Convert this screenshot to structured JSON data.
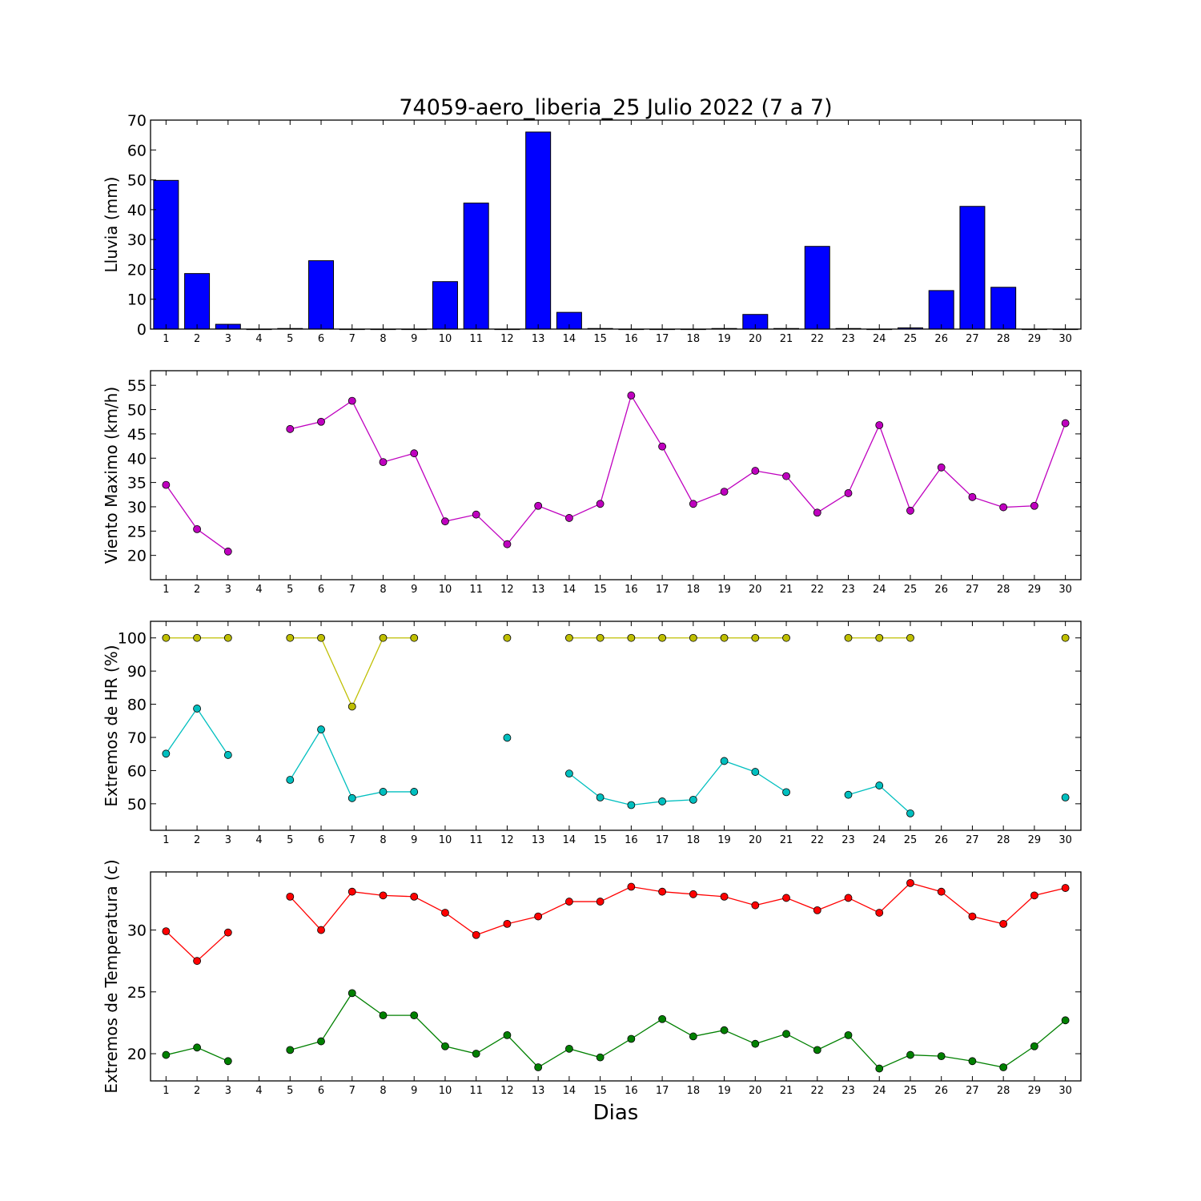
{
  "title": "74059-aero_liberia_25 Julio 2022  (7 a 7)",
  "xlabel": "Dias",
  "chart_data": [
    {
      "type": "bar",
      "ylabel": "Lluvia (mm)",
      "x": [
        1,
        2,
        3,
        4,
        5,
        6,
        7,
        8,
        9,
        10,
        11,
        12,
        13,
        14,
        15,
        16,
        17,
        18,
        19,
        20,
        21,
        22,
        23,
        24,
        25,
        26,
        27,
        28,
        29,
        30
      ],
      "ylim": [
        0,
        70
      ],
      "yticks": [
        0,
        10,
        20,
        30,
        40,
        50,
        60,
        70
      ],
      "series": [
        {
          "color": "#0000ff",
          "values": [
            49.8,
            18.6,
            1.6,
            0,
            0.2,
            22.9,
            0,
            0,
            0,
            15.9,
            42.2,
            0,
            66.0,
            5.6,
            0.2,
            0,
            0,
            0,
            0.2,
            4.9,
            0.2,
            27.7,
            0.2,
            0,
            0.4,
            12.9,
            41.1,
            14.0,
            0,
            0
          ]
        }
      ]
    },
    {
      "type": "line",
      "ylabel": "Viento Maximo (km/h)",
      "x": [
        1,
        2,
        3,
        4,
        5,
        6,
        7,
        8,
        9,
        10,
        11,
        12,
        13,
        14,
        15,
        16,
        17,
        18,
        19,
        20,
        21,
        22,
        23,
        24,
        25,
        26,
        27,
        28,
        29,
        30
      ],
      "ylim": [
        15,
        58
      ],
      "yticks": [
        20,
        25,
        30,
        35,
        40,
        45,
        50,
        55
      ],
      "series": [
        {
          "color": "#bf00bf",
          "values": [
            34.5,
            25.4,
            20.8,
            null,
            46.0,
            47.5,
            51.8,
            39.2,
            41.0,
            27.0,
            28.4,
            22.3,
            30.2,
            27.7,
            30.6,
            52.9,
            42.4,
            30.6,
            33.1,
            37.4,
            36.3,
            28.8,
            32.8,
            46.8,
            29.2,
            38.1,
            32.0,
            29.9,
            30.2,
            47.2
          ]
        }
      ]
    },
    {
      "type": "line",
      "ylabel": "Extremos de HR (%)",
      "x": [
        1,
        2,
        3,
        4,
        5,
        6,
        7,
        8,
        9,
        10,
        11,
        12,
        13,
        14,
        15,
        16,
        17,
        18,
        19,
        20,
        21,
        22,
        23,
        24,
        25,
        26,
        27,
        28,
        29,
        30
      ],
      "ylim": [
        42,
        105
      ],
      "yticks": [
        50,
        60,
        70,
        80,
        90,
        100
      ],
      "series": [
        {
          "color": "#bfbf00",
          "values": [
            100,
            100,
            100,
            null,
            100,
            100,
            79.3,
            100,
            100,
            null,
            null,
            100,
            null,
            100,
            100,
            100,
            100,
            100,
            100,
            100,
            100,
            null,
            100,
            100,
            100,
            null,
            null,
            null,
            null,
            100
          ]
        },
        {
          "color": "#00bfbf",
          "values": [
            65.1,
            78.7,
            64.7,
            null,
            57.2,
            72.4,
            51.7,
            53.6,
            53.6,
            null,
            null,
            69.9,
            null,
            59.1,
            51.9,
            49.6,
            50.7,
            51.2,
            62.9,
            59.6,
            53.5,
            null,
            52.7,
            55.5,
            47.1,
            null,
            null,
            null,
            null,
            51.9
          ]
        }
      ]
    },
    {
      "type": "line",
      "ylabel": "Extremos de Temperatura (c)",
      "x": [
        1,
        2,
        3,
        4,
        5,
        6,
        7,
        8,
        9,
        10,
        11,
        12,
        13,
        14,
        15,
        16,
        17,
        18,
        19,
        20,
        21,
        22,
        23,
        24,
        25,
        26,
        27,
        28,
        29,
        30
      ],
      "ylim": [
        17.8,
        34.7
      ],
      "yticks": [
        20,
        25,
        30
      ],
      "series": [
        {
          "color": "#ff0000",
          "values": [
            29.9,
            27.5,
            29.8,
            null,
            32.7,
            30.0,
            33.1,
            32.8,
            32.7,
            31.4,
            29.6,
            30.5,
            31.1,
            32.3,
            32.3,
            33.5,
            33.1,
            32.9,
            32.7,
            32.0,
            32.6,
            31.6,
            32.6,
            31.4,
            33.8,
            33.1,
            31.1,
            30.5,
            32.8,
            33.4
          ]
        },
        {
          "color": "#008000",
          "values": [
            19.9,
            20.5,
            19.4,
            null,
            20.3,
            21.0,
            24.9,
            23.1,
            23.1,
            20.6,
            20.0,
            21.5,
            18.9,
            20.4,
            19.7,
            21.2,
            22.8,
            21.4,
            21.9,
            20.8,
            21.6,
            20.3,
            21.5,
            18.8,
            19.9,
            19.8,
            19.4,
            18.9,
            20.6,
            22.7
          ]
        }
      ]
    }
  ]
}
